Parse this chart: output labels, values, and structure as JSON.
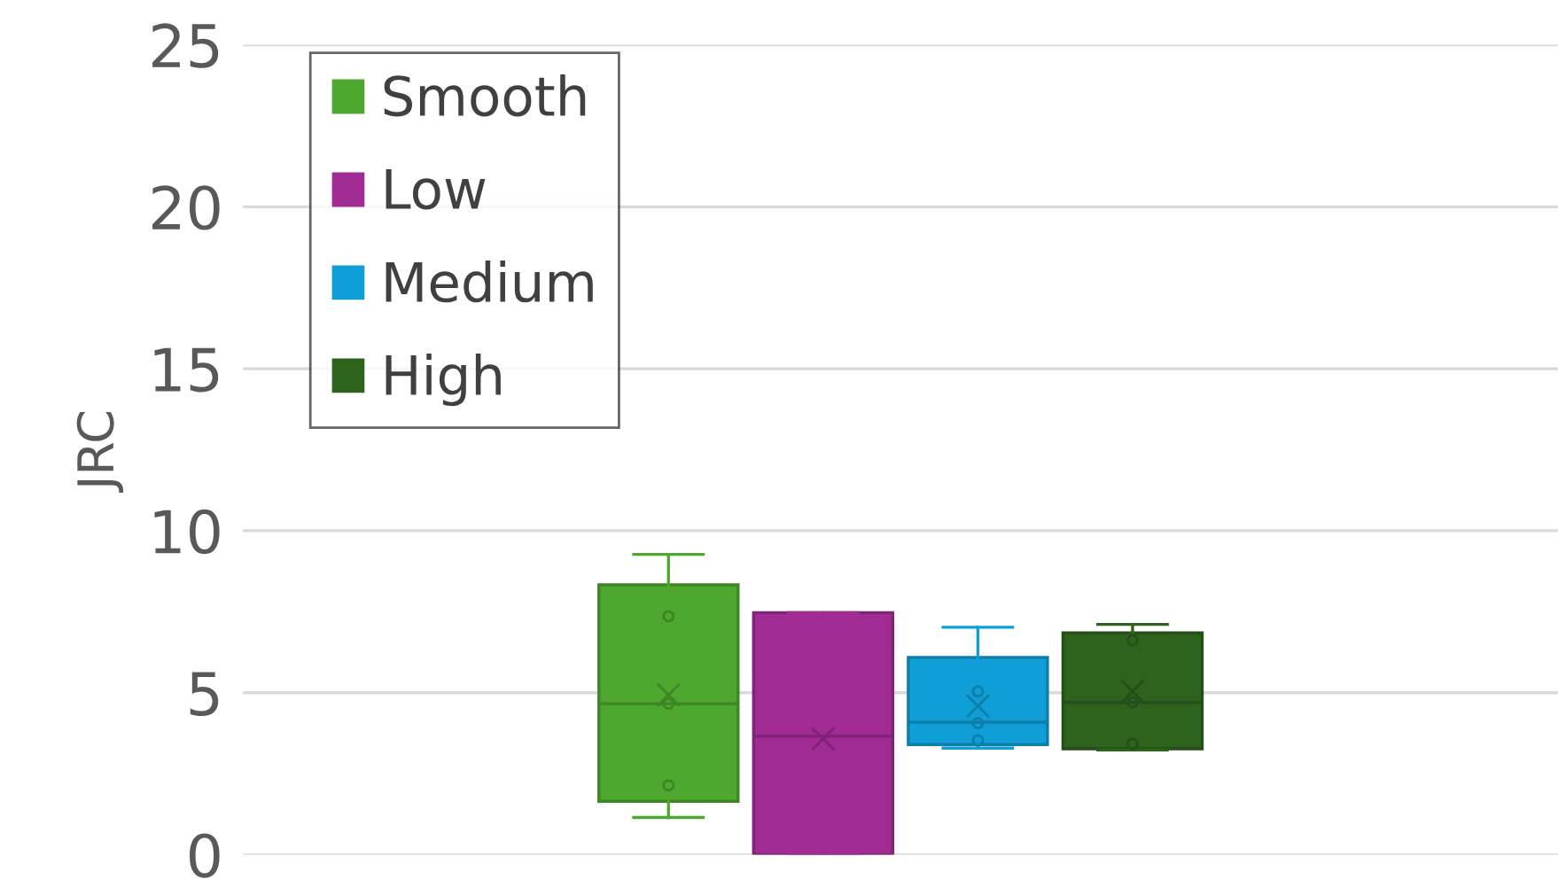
{
  "chart_data": {
    "type": "box",
    "ylabel": "JRC",
    "categories": [
      null
    ],
    "series": [
      {
        "name": "Smooth",
        "color": "#4ea72e",
        "boxes": [
          {
            "low": 1.15,
            "q1": 1.65,
            "median": 4.66,
            "q3": 8.33,
            "high": 9.27,
            "mean": 4.93,
            "outliers": [
              7.36,
              4.66,
              2.14
            ]
          }
        ]
      },
      {
        "name": "Low",
        "color": "#a02b93",
        "boxes": [
          {
            "low": 0,
            "q1": 0,
            "median": 3.66,
            "q3": 7.47,
            "high": 7.47,
            "mean": 3.58
          }
        ]
      },
      {
        "name": "Medium",
        "color": "#0f9ed5",
        "boxes": [
          {
            "low": 3.29,
            "q1": 3.4,
            "median": 4.09,
            "q3": 6.09,
            "high": 7.02,
            "mean": 4.59,
            "outliers": [
              5.04,
              4.06,
              3.53
            ]
          }
        ]
      },
      {
        "name": "High",
        "color": "#2e631e",
        "boxes": [
          {
            "low": 3.23,
            "q1": 3.27,
            "median": 4.7,
            "q3": 6.85,
            "high": 7.11,
            "mean": 5.04,
            "outliers": [
              6.62,
              4.7,
              3.42
            ]
          }
        ]
      }
    ],
    "ylim": [
      0,
      25
    ],
    "yticks": [
      0,
      5,
      10,
      15,
      20,
      25
    ],
    "grid": "y",
    "legend": "top left",
    "tick_labels": "y"
  }
}
